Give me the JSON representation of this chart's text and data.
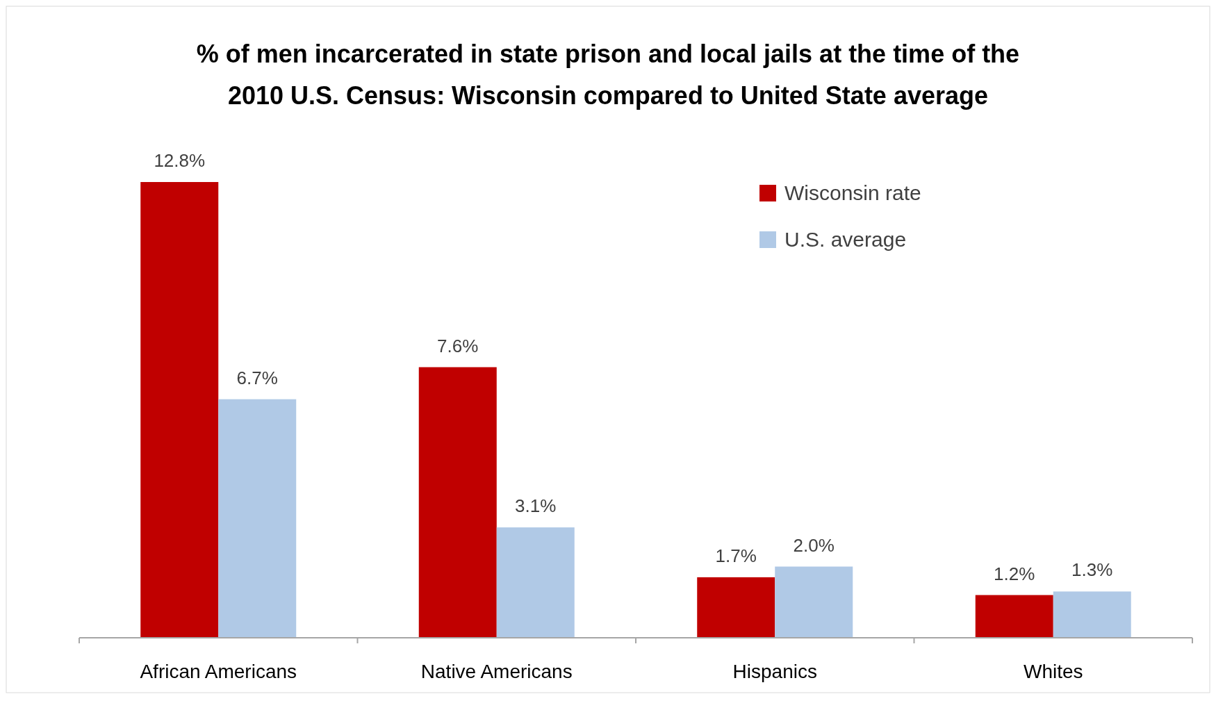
{
  "chart_data": {
    "type": "bar",
    "title": "% of men incarcerated in state prison and local jails at the time of the 2010 U.S. Census: Wisconsin compared to United State average",
    "categories": [
      "African Americans",
      "Native Americans",
      "Hispanics",
      "Whites"
    ],
    "series": [
      {
        "name": "Wisconsin rate",
        "color": "#c00000",
        "values": [
          12.8,
          7.6,
          1.7,
          1.2
        ],
        "value_labels": [
          "12.8%",
          "7.6%",
          "1.7%",
          "1.2%"
        ]
      },
      {
        "name": "U.S. average",
        "color": "#b0c9e6",
        "values": [
          6.7,
          3.1,
          2.0,
          1.3
        ],
        "value_labels": [
          "6.7%",
          "3.1%",
          "2.0%",
          "1.3%"
        ]
      }
    ],
    "legend": "top right",
    "grid": false
  }
}
